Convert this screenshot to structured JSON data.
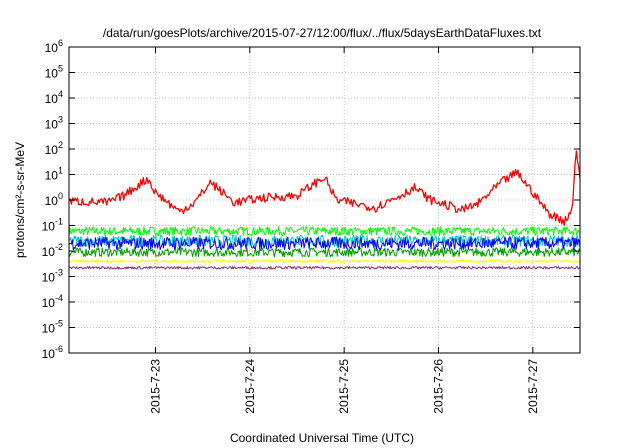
{
  "chart_data": {
    "type": "line",
    "title": "/data/run/goesPlots/archive/2015-07-27/12:00/flux/../flux/5daysEarthDataFluxes.txt",
    "xlabel": "Coordinated Universal Time (UTC)",
    "ylabel": "protons/cm²-s-sr-MeV",
    "yscale": "log",
    "ylim": [
      1e-06,
      1000000.0
    ],
    "xlim": [
      "2015-07-22 02:00",
      "2015-07-27 12:00"
    ],
    "yticks": [
      {
        "value": 1e-06,
        "base": "10",
        "exp": "-6"
      },
      {
        "value": 1e-05,
        "base": "10",
        "exp": "-5"
      },
      {
        "value": 0.0001,
        "base": "10",
        "exp": "-4"
      },
      {
        "value": 0.001,
        "base": "10",
        "exp": "-3"
      },
      {
        "value": 0.01,
        "base": "10",
        "exp": "-2"
      },
      {
        "value": 0.1,
        "base": "10",
        "exp": "-1"
      },
      {
        "value": 1.0,
        "base": "10",
        "exp": "0"
      },
      {
        "value": 10.0,
        "base": "10",
        "exp": "1"
      },
      {
        "value": 100.0,
        "base": "10",
        "exp": "2"
      },
      {
        "value": 1000.0,
        "base": "10",
        "exp": "3"
      },
      {
        "value": 10000.0,
        "base": "10",
        "exp": "4"
      },
      {
        "value": 100000.0,
        "base": "10",
        "exp": "5"
      },
      {
        "value": 1000000.0,
        "base": "10",
        "exp": "6"
      }
    ],
    "xticks": [
      "2015-7-23",
      "2015-7-24",
      "2015-7-25",
      "2015-7-26",
      "2015-7-27"
    ],
    "grid": true,
    "series": [
      {
        "color": "#ff0000",
        "x": [
          "2015-07-22 02:00",
          "2015-07-22 12:00",
          "2015-07-22 16:00",
          "2015-07-22 22:00",
          "2015-07-23 00:00",
          "2015-07-23 06:00",
          "2015-07-23 10:00",
          "2015-07-23 14:00",
          "2015-07-23 20:00",
          "2015-07-24 03:00",
          "2015-07-24 12:00",
          "2015-07-24 19:00",
          "2015-07-24 22:00",
          "2015-07-25 08:00",
          "2015-07-25 18:00",
          "2015-07-25 22:00",
          "2015-07-26 06:00",
          "2015-07-26 10:00",
          "2015-07-26 16:00",
          "2015-07-26 20:00",
          "2015-07-27 00:00",
          "2015-07-27 04:00",
          "2015-07-27 08:00",
          "2015-07-27 10:00",
          "2015-07-27 11:00",
          "2015-07-27 12:00"
        ],
        "y": [
          0.9,
          0.8,
          1.5,
          7,
          2,
          0.35,
          0.8,
          5,
          0.8,
          1.2,
          1.5,
          8,
          1.0,
          0.5,
          3,
          1.0,
          0.4,
          0.7,
          5,
          12,
          2,
          0.3,
          0.15,
          0.4,
          120,
          5
        ]
      },
      {
        "color": "#00ff00",
        "x": [
          "2015-07-22 02:00",
          "2015-07-27 12:00"
        ],
        "y": [
          0.06,
          0.06
        ]
      },
      {
        "color": "#00c8c8",
        "x": [
          "2015-07-22 02:00",
          "2015-07-27 12:00"
        ],
        "y": [
          0.025,
          0.025
        ]
      },
      {
        "color": "#0000ff",
        "x": [
          "2015-07-22 02:00",
          "2015-07-27 12:00"
        ],
        "y": [
          0.02,
          0.02
        ]
      },
      {
        "color": "#00a000",
        "x": [
          "2015-07-22 02:00",
          "2015-07-27 12:00"
        ],
        "y": [
          0.009,
          0.009
        ]
      },
      {
        "color": "#ffff00",
        "x": [
          "2015-07-22 02:00",
          "2015-07-27 12:00"
        ],
        "y": [
          0.004,
          0.004
        ]
      },
      {
        "color": "#8b2d6e",
        "x": [
          "2015-07-22 02:00",
          "2015-07-27 12:00"
        ],
        "y": [
          0.0022,
          0.0022
        ]
      }
    ]
  }
}
